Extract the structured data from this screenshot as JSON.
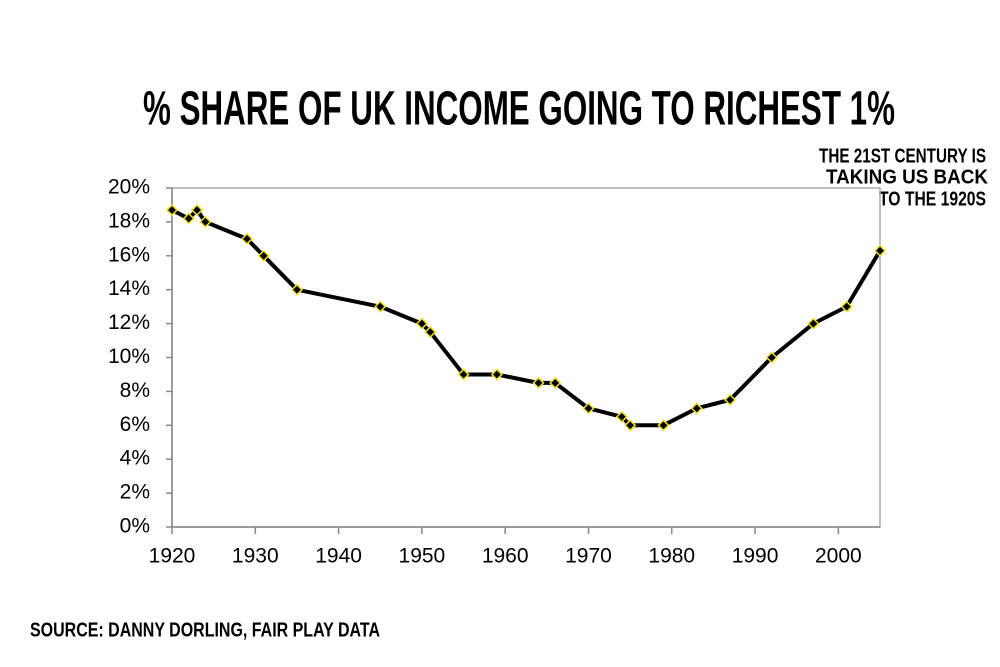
{
  "chart_data": {
    "type": "line",
    "title": "% SHARE OF UK INCOME GOING TO RICHEST 1%",
    "annotation": [
      "THE 21ST CENTURY IS",
      "TAKING US BACK",
      "TO THE 1920S"
    ],
    "source": "SOURCE: DANNY DORLING, FAIR PLAY DATA",
    "x": [
      1920,
      1922,
      1923,
      1924,
      1929,
      1931,
      1935,
      1945,
      1950,
      1951,
      1955,
      1959,
      1964,
      1966,
      1970,
      1974,
      1975,
      1979,
      1983,
      1987,
      1992,
      1997,
      2001,
      2005
    ],
    "values": [
      18.7,
      18.2,
      18.7,
      18.0,
      17.0,
      16.0,
      14.0,
      13.0,
      12.0,
      11.5,
      9.0,
      9.0,
      8.5,
      8.5,
      7.0,
      6.5,
      6.0,
      6.0,
      7.0,
      7.5,
      10.0,
      12.0,
      13.0,
      16.3
    ],
    "color": "#000000",
    "marker_edge": "#f2e01c",
    "xlim": [
      1920,
      2005
    ],
    "xticks": [
      1920,
      1930,
      1940,
      1950,
      1960,
      1970,
      1980,
      1990,
      2000
    ],
    "ylim": [
      0,
      20
    ],
    "yticks": [
      {
        "value": 0,
        "label": "0%"
      },
      {
        "value": 2,
        "label": "2%"
      },
      {
        "value": 4,
        "label": "4%"
      },
      {
        "value": 6,
        "label": "6%"
      },
      {
        "value": 8,
        "label": "8%"
      },
      {
        "value": 10,
        "label": "10%"
      },
      {
        "value": 12,
        "label": "12%"
      },
      {
        "value": 14,
        "label": "14%"
      },
      {
        "value": 16,
        "label": "16%"
      },
      {
        "value": 18,
        "label": "18%"
      },
      {
        "value": 20,
        "label": "20%"
      }
    ]
  }
}
